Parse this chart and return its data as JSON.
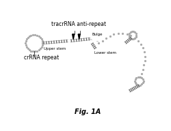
{
  "title": "Fig. 1A",
  "labels": {
    "tracr": "tracrRNA anti-repeat",
    "crRNA": "crRNA repeat",
    "bulge": "Bulge",
    "upper_stem": "Upper stem",
    "lower_stem": "Lower stem"
  },
  "bg_color": "#ffffff",
  "line_color": "#aaaaaa",
  "rung_color": "#666666",
  "arrow_color": "#000000"
}
